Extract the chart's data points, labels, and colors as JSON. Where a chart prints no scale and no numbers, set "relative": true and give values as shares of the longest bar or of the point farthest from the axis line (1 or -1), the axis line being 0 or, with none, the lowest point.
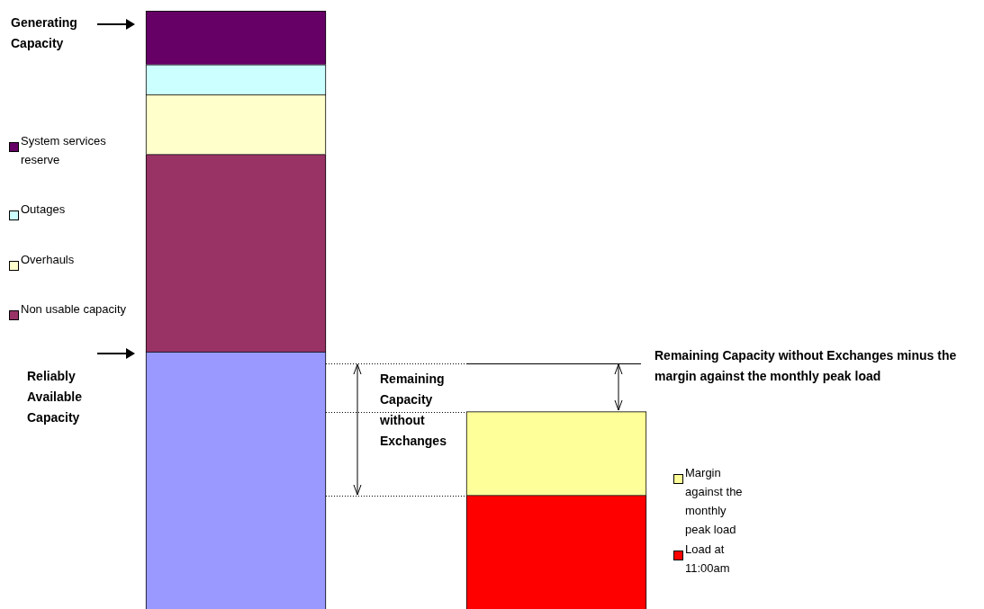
{
  "chart_data": {
    "type": "bar",
    "stacked": true,
    "relative": true,
    "legend": "left",
    "categories": [
      null,
      null
    ],
    "series": [
      {
        "color": "#9999ff",
        "values": [
          0.43,
          null
        ]
      },
      {
        "name": "Non usable capacity",
        "color": "#993366",
        "values": [
          0.33,
          null
        ]
      },
      {
        "name": "Overhauls",
        "color": "#ffffcc",
        "values": [
          0.1,
          null
        ]
      },
      {
        "name": "Outages",
        "color": "#ccffff",
        "values": [
          0.05,
          null
        ]
      },
      {
        "name": "System services reserve",
        "color": "#660066",
        "values": [
          0.09,
          null
        ]
      },
      {
        "name": "Load at 11:00am",
        "color": "#ff0000",
        "values": [
          null,
          0.19
        ]
      },
      {
        "name": "Margin against the monthly peak load",
        "color": "#ffff99",
        "values": [
          null,
          0.14
        ]
      }
    ],
    "ref_lines": [
      {
        "axis": "y",
        "value": 0.41,
        "line_style": "dotted"
      },
      {
        "axis": "y",
        "value": 0.33,
        "line_style": "dotted"
      },
      {
        "axis": "y",
        "value": 0.19,
        "line_style": "dotted"
      }
    ],
    "annotations": [
      "Generating Capacity",
      "Reliably Available Capacity",
      "Remaining Capacity without Exchanges",
      "Remaining Capacity without Exchanges minus the margin against the monthly peak load"
    ]
  }
}
